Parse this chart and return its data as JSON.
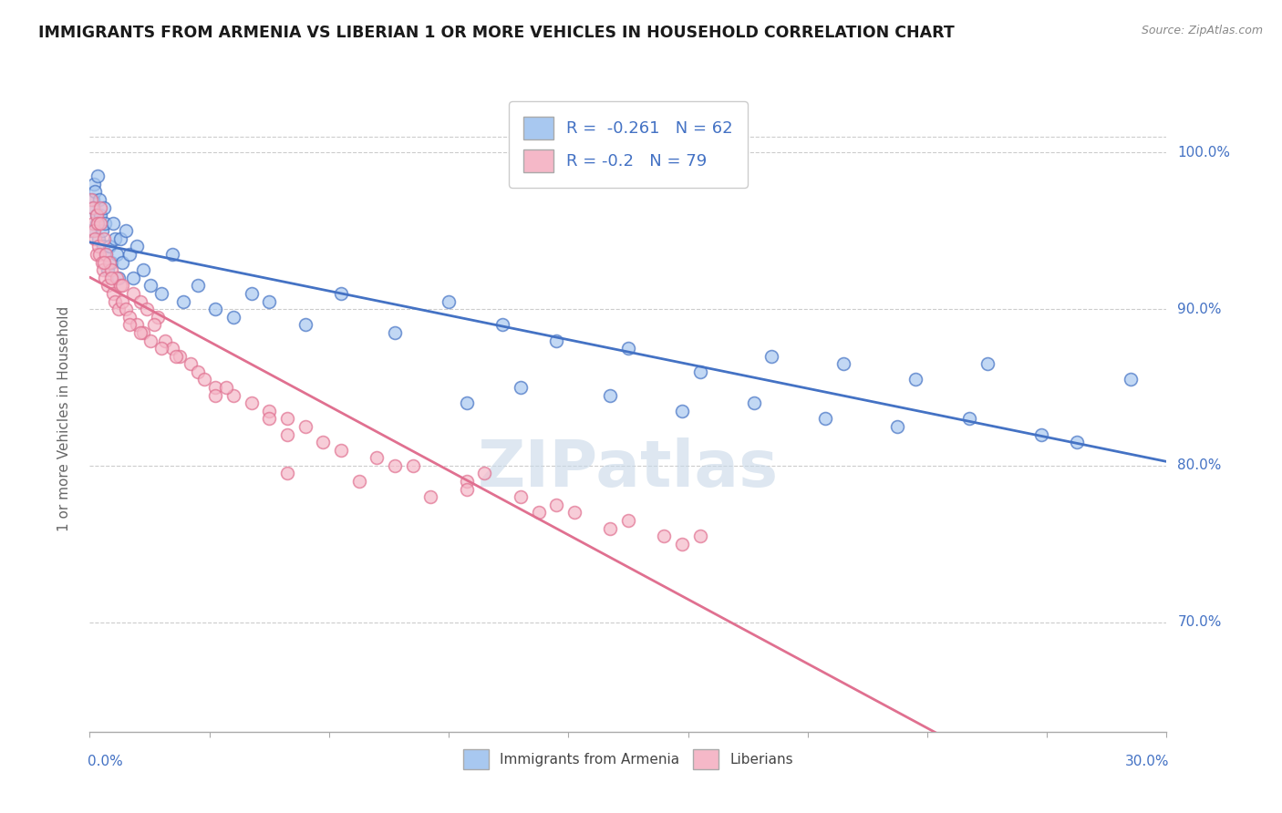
{
  "title": "IMMIGRANTS FROM ARMENIA VS LIBERIAN 1 OR MORE VEHICLES IN HOUSEHOLD CORRELATION CHART",
  "source": "Source: ZipAtlas.com",
  "ylabel": "1 or more Vehicles in Household",
  "xmin": 0.0,
  "xmax": 30.0,
  "ymin": 63.0,
  "ymax": 103.0,
  "yticks": [
    70.0,
    80.0,
    90.0,
    100.0
  ],
  "ytick_labels": [
    "70.0%",
    "80.0%",
    "90.0%",
    "100.0%"
  ],
  "R_armenia": -0.261,
  "N_armenia": 62,
  "R_liberian": -0.2,
  "N_liberian": 79,
  "color_armenia": "#a8c8f0",
  "color_liberian": "#f5b8c8",
  "color_armenia_line": "#4472c4",
  "color_liberian_line": "#e07090",
  "legend_text_color": "#4472c4",
  "grid_color": "#cccccc",
  "background_color": "#ffffff",
  "title_fontsize": 12.5,
  "axis_label_color": "#4472c4",
  "armenia_x": [
    0.05,
    0.08,
    0.1,
    0.12,
    0.15,
    0.18,
    0.2,
    0.22,
    0.25,
    0.28,
    0.3,
    0.35,
    0.38,
    0.4,
    0.42,
    0.45,
    0.5,
    0.55,
    0.6,
    0.65,
    0.7,
    0.75,
    0.8,
    0.85,
    0.9,
    1.0,
    1.1,
    1.2,
    1.3,
    1.5,
    1.7,
    2.0,
    2.3,
    2.6,
    3.0,
    3.5,
    4.0,
    4.5,
    5.0,
    6.0,
    7.0,
    8.5,
    10.0,
    11.5,
    13.0,
    15.0,
    17.0,
    19.0,
    21.0,
    23.0,
    25.0,
    10.5,
    12.0,
    14.5,
    16.5,
    18.5,
    20.5,
    22.5,
    24.5,
    26.5,
    27.5,
    29.0
  ],
  "armenia_y": [
    95.0,
    97.0,
    96.5,
    98.0,
    97.5,
    96.0,
    95.5,
    98.5,
    94.5,
    97.0,
    96.0,
    95.0,
    94.0,
    96.5,
    95.5,
    93.5,
    92.5,
    94.0,
    93.0,
    95.5,
    94.5,
    93.5,
    92.0,
    94.5,
    93.0,
    95.0,
    93.5,
    92.0,
    94.0,
    92.5,
    91.5,
    91.0,
    93.5,
    90.5,
    91.5,
    90.0,
    89.5,
    91.0,
    90.5,
    89.0,
    91.0,
    88.5,
    90.5,
    89.0,
    88.0,
    87.5,
    86.0,
    87.0,
    86.5,
    85.5,
    86.5,
    84.0,
    85.0,
    84.5,
    83.5,
    84.0,
    83.0,
    82.5,
    83.0,
    82.0,
    81.5,
    85.5
  ],
  "liberian_x": [
    0.05,
    0.08,
    0.1,
    0.12,
    0.15,
    0.18,
    0.2,
    0.22,
    0.25,
    0.28,
    0.3,
    0.35,
    0.38,
    0.4,
    0.42,
    0.45,
    0.5,
    0.55,
    0.6,
    0.65,
    0.7,
    0.75,
    0.8,
    0.85,
    0.9,
    1.0,
    1.1,
    1.2,
    1.3,
    1.4,
    1.5,
    1.6,
    1.7,
    1.9,
    2.1,
    2.3,
    2.5,
    2.8,
    3.0,
    3.5,
    4.0,
    4.5,
    5.0,
    5.5,
    6.0,
    7.0,
    8.0,
    9.0,
    10.5,
    12.0,
    3.2,
    1.8,
    0.6,
    0.9,
    1.1,
    2.0,
    0.3,
    0.4,
    1.4,
    2.4,
    3.8,
    5.5,
    8.5,
    11.0,
    13.0,
    15.0,
    17.0,
    5.5,
    7.5,
    9.5,
    12.5,
    14.5,
    16.5,
    3.5,
    6.5,
    10.5,
    13.5,
    16.0,
    5.0
  ],
  "liberian_y": [
    97.0,
    95.5,
    96.5,
    95.0,
    94.5,
    96.0,
    93.5,
    95.5,
    94.0,
    93.5,
    96.5,
    93.0,
    92.5,
    94.5,
    92.0,
    93.5,
    91.5,
    93.0,
    92.5,
    91.0,
    90.5,
    92.0,
    90.0,
    91.5,
    90.5,
    90.0,
    89.5,
    91.0,
    89.0,
    90.5,
    88.5,
    90.0,
    88.0,
    89.5,
    88.0,
    87.5,
    87.0,
    86.5,
    86.0,
    85.0,
    84.5,
    84.0,
    83.5,
    83.0,
    82.5,
    81.0,
    80.5,
    80.0,
    79.0,
    78.0,
    85.5,
    89.0,
    92.0,
    91.5,
    89.0,
    87.5,
    95.5,
    93.0,
    88.5,
    87.0,
    85.0,
    82.0,
    80.0,
    79.5,
    77.5,
    76.5,
    75.5,
    79.5,
    79.0,
    78.0,
    77.0,
    76.0,
    75.0,
    84.5,
    81.5,
    78.5,
    77.0,
    75.5,
    83.0
  ],
  "watermark_text": "ZIPatlas",
  "watermark_color": "#c8d8e8",
  "watermark_fontsize": 52
}
